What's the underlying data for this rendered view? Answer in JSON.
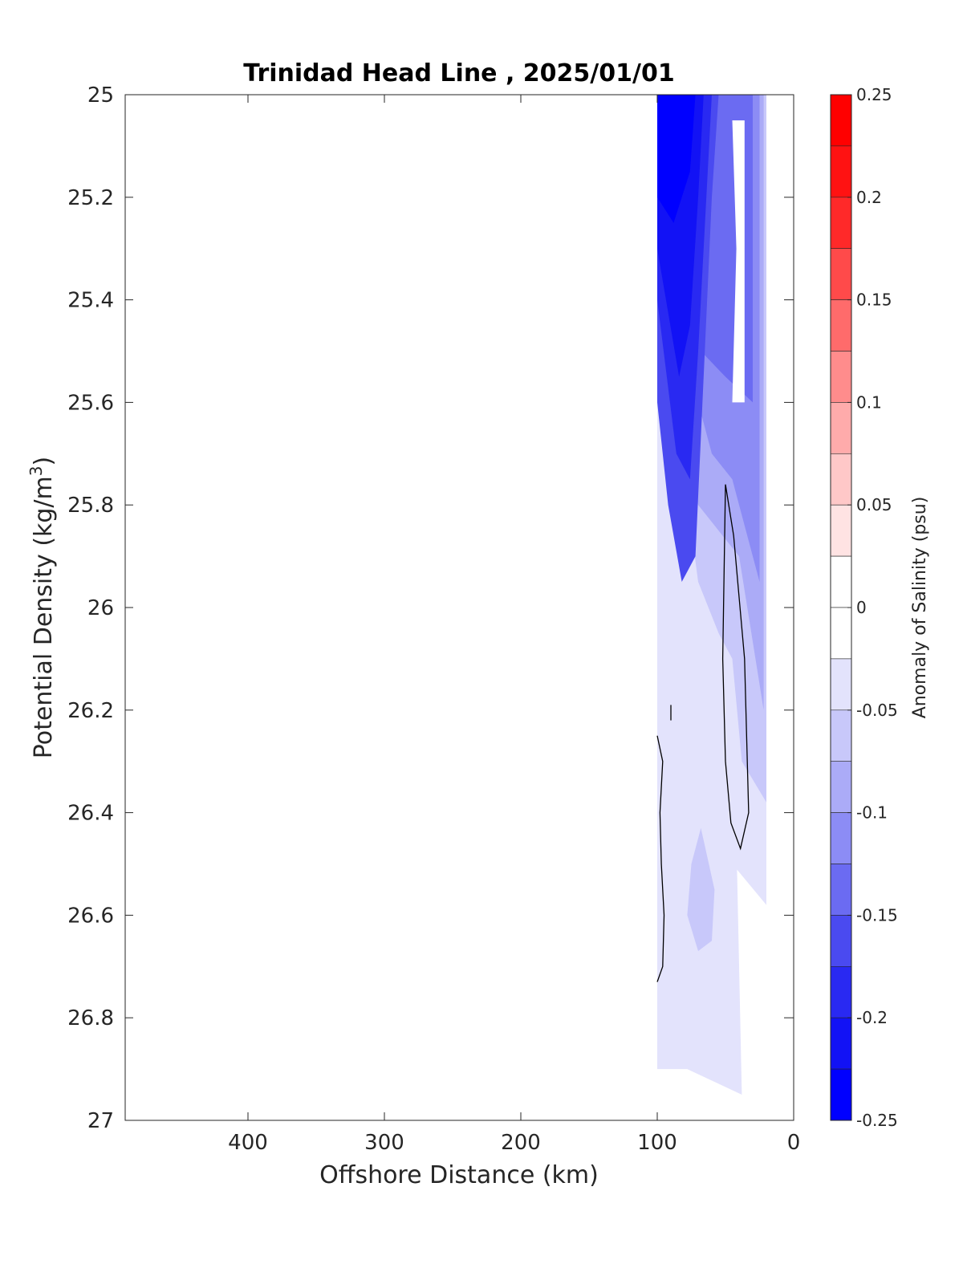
{
  "chart_data": {
    "type": "contour",
    "title": "Trinidad Head Line , 2025/01/01",
    "xlabel": "Offshore Distance (km)",
    "ylabel": "Potential Density (kg/m",
    "ylabel_sup": "3",
    "ylabel_tail": ")",
    "xlim": [
      490,
      0
    ],
    "ylim": [
      25,
      27
    ],
    "x_reversed": true,
    "y_reversed": true,
    "xticks": [
      400,
      300,
      200,
      100,
      0
    ],
    "yticks": [
      25,
      25.2,
      25.4,
      25.6,
      25.8,
      26,
      26.2,
      26.4,
      26.6,
      26.8,
      27
    ],
    "xtick_labels": [
      "400",
      "300",
      "200",
      "100",
      "0"
    ],
    "ytick_labels": [
      "25",
      "25.2",
      "25.4",
      "25.6",
      "25.8",
      "26",
      "26.2",
      "26.4",
      "26.6",
      "26.8",
      "27"
    ],
    "colorbar": {
      "label": "Anomaly of Salinity (psu)",
      "range": [
        -0.25,
        0.25
      ],
      "ticks": [
        0.25,
        0.2,
        0.15,
        0.1,
        0.05,
        0,
        -0.05,
        -0.1,
        -0.15,
        -0.2,
        -0.25
      ],
      "tick_labels": [
        "0.25",
        "0.2",
        "0.15",
        "0.1",
        "0.05",
        "0",
        "-0.05",
        "-0.1",
        "-0.15",
        "-0.2",
        "-0.25"
      ],
      "levels": 20,
      "colors": {
        "0.225": "#ff0000",
        "0.175": "#ff2020",
        "0.125": "#ff4a4a",
        "0.075": "#ff8080",
        "0.025": "#ffcccc",
        "0.0125": "#ffe6e6",
        "-0.0125": "#ffffff",
        "-0.0375": "#e3e3fc",
        "-0.0625": "#c8c8fa",
        "-0.0875": "#ababf7",
        "-0.1125": "#8c8cf5",
        "-0.1375": "#6b6bf2",
        "-0.1625": "#4a4af0",
        "-0.1875": "#2929f2",
        "-0.2125": "#1212f5",
        "-0.2375": "#0000ff"
      }
    },
    "data_extent": {
      "x": [
        20,
        100
      ],
      "y": [
        25,
        26.9
      ]
    },
    "regions": [
      {
        "level": -0.0375,
        "points": [
          [
            100,
            25
          ],
          [
            20,
            25
          ],
          [
            20,
            26.58
          ],
          [
            45,
            26.5
          ],
          [
            52,
            26.2
          ],
          [
            42,
            26.45
          ],
          [
            38,
            26.95
          ],
          [
            78,
            26.9
          ],
          [
            100,
            26.9
          ]
        ]
      },
      {
        "level": -0.0625,
        "points": [
          [
            100,
            25
          ],
          [
            20,
            25
          ],
          [
            20,
            26.38
          ],
          [
            38,
            26.3
          ],
          [
            45,
            26.1
          ],
          [
            55,
            26.05
          ],
          [
            70,
            25.95
          ],
          [
            80,
            25.75
          ],
          [
            100,
            25.6
          ]
        ]
      },
      {
        "level": -0.0625,
        "points": [
          [
            68,
            26.43
          ],
          [
            58,
            26.55
          ],
          [
            60,
            26.65
          ],
          [
            70,
            26.67
          ],
          [
            78,
            26.6
          ],
          [
            75,
            26.5
          ]
        ]
      },
      {
        "level": -0.0875,
        "points": [
          [
            100,
            25
          ],
          [
            22,
            25
          ],
          [
            22,
            26.2
          ],
          [
            40,
            25.9
          ],
          [
            55,
            25.85
          ],
          [
            70,
            25.8
          ],
          [
            85,
            25.6
          ],
          [
            100,
            25.5
          ]
        ]
      },
      {
        "level": -0.1125,
        "points": [
          [
            100,
            25
          ],
          [
            25,
            25
          ],
          [
            25,
            25.95
          ],
          [
            45,
            25.75
          ],
          [
            60,
            25.7
          ],
          [
            75,
            25.55
          ],
          [
            100,
            25.35
          ]
        ]
      },
      {
        "level": -0.1375,
        "points": [
          [
            100,
            25
          ],
          [
            30,
            25
          ],
          [
            30,
            25.6
          ],
          [
            50,
            25.55
          ],
          [
            68,
            25.5
          ],
          [
            80,
            25.3
          ],
          [
            100,
            25.2
          ]
        ]
      },
      {
        "level": -0.1625,
        "points": [
          [
            100,
            25
          ],
          [
            55,
            25
          ],
          [
            60,
            25.2
          ],
          [
            66,
            25.55
          ],
          [
            72,
            25.9
          ],
          [
            82,
            25.95
          ],
          [
            92,
            25.8
          ],
          [
            100,
            25.6
          ]
        ]
      },
      {
        "level": -0.1875,
        "points": [
          [
            100,
            25
          ],
          [
            60,
            25
          ],
          [
            64,
            25.2
          ],
          [
            70,
            25.5
          ],
          [
            76,
            25.75
          ],
          [
            86,
            25.7
          ],
          [
            100,
            25.4
          ]
        ]
      },
      {
        "level": -0.2125,
        "points": [
          [
            100,
            25
          ],
          [
            66,
            25
          ],
          [
            70,
            25.2
          ],
          [
            76,
            25.45
          ],
          [
            84,
            25.55
          ],
          [
            100,
            25.3
          ]
        ]
      },
      {
        "level": -0.2375,
        "points": [
          [
            100,
            25
          ],
          [
            72,
            25
          ],
          [
            76,
            25.15
          ],
          [
            88,
            25.25
          ],
          [
            100,
            25.2
          ]
        ]
      }
    ],
    "zero_regions": [
      {
        "points": [
          [
            45,
            25.05
          ],
          [
            36,
            25.05
          ],
          [
            36,
            25.6
          ],
          [
            45,
            25.6
          ],
          [
            42,
            25.3
          ]
        ]
      }
    ],
    "zero_contours": [
      [
        [
          50,
          25.76
        ],
        [
          44,
          25.86
        ],
        [
          36,
          26.1
        ],
        [
          33,
          26.4
        ],
        [
          39,
          26.47
        ],
        [
          46,
          26.42
        ],
        [
          50,
          26.3
        ],
        [
          52,
          26.1
        ],
        [
          50,
          25.76
        ]
      ],
      [
        [
          100,
          26.25
        ],
        [
          96,
          26.3
        ],
        [
          98,
          26.4
        ],
        [
          97,
          26.5
        ],
        [
          95,
          26.6
        ],
        [
          96,
          26.7
        ],
        [
          100,
          26.73
        ]
      ],
      [
        [
          90,
          26.19
        ],
        [
          90,
          26.22
        ]
      ]
    ]
  }
}
